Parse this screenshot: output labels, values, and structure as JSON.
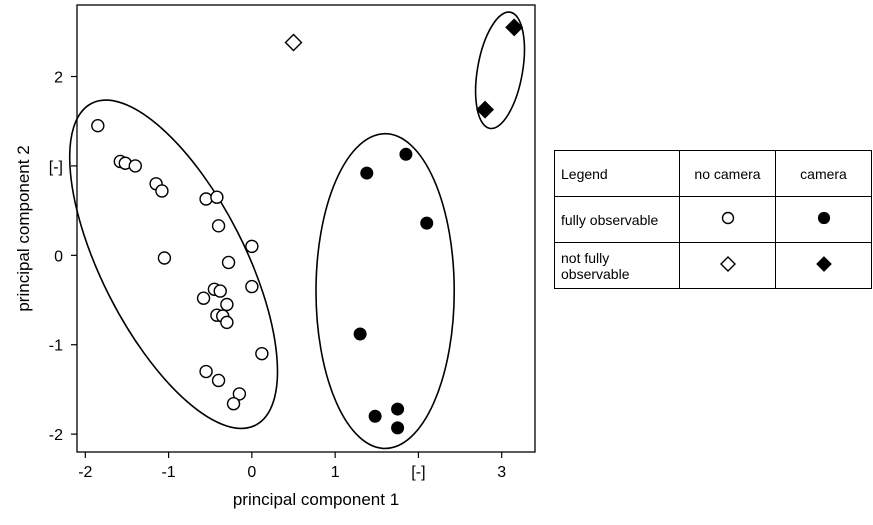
{
  "chart_data": {
    "type": "scatter",
    "xlabel": "principal component 1",
    "ylabel": "principal component 2",
    "x_unit_label": "[-]",
    "y_unit_label": "[-]",
    "xlim": [
      -2.1,
      3.4
    ],
    "ylim": [
      -2.2,
      2.8
    ],
    "xticks": [
      -2,
      -1,
      0,
      1,
      2,
      3
    ],
    "yticks": [
      -2,
      -1,
      0,
      1,
      2
    ],
    "x_tick_labels": [
      "-2",
      "-1",
      "0",
      "1",
      "[-]",
      "3"
    ],
    "y_tick_labels": [
      "-2",
      "-1",
      "0",
      "[-]",
      "2"
    ],
    "grid": false,
    "series": [
      {
        "name": "fully observable, no camera",
        "marker": "circle-open",
        "points": [
          [
            -1.85,
            1.45
          ],
          [
            -1.58,
            1.05
          ],
          [
            -1.52,
            1.03
          ],
          [
            -1.4,
            1.0
          ],
          [
            -1.15,
            0.8
          ],
          [
            -1.08,
            0.72
          ],
          [
            -0.55,
            0.63
          ],
          [
            -0.42,
            0.65
          ],
          [
            -0.4,
            0.33
          ],
          [
            0.0,
            0.1
          ],
          [
            -1.05,
            -0.03
          ],
          [
            -0.28,
            -0.08
          ],
          [
            -0.45,
            -0.38
          ],
          [
            -0.38,
            -0.4
          ],
          [
            -0.58,
            -0.48
          ],
          [
            -0.3,
            -0.55
          ],
          [
            0.0,
            -0.35
          ],
          [
            -0.42,
            -0.67
          ],
          [
            -0.35,
            -0.68
          ],
          [
            -0.3,
            -0.75
          ],
          [
            0.12,
            -1.1
          ],
          [
            -0.55,
            -1.3
          ],
          [
            -0.4,
            -1.4
          ],
          [
            -0.15,
            -1.55
          ],
          [
            -0.22,
            -1.66
          ]
        ]
      },
      {
        "name": "fully observable, camera",
        "marker": "circle-filled",
        "points": [
          [
            1.85,
            1.13
          ],
          [
            1.38,
            0.92
          ],
          [
            2.1,
            0.36
          ],
          [
            1.3,
            -0.88
          ],
          [
            1.48,
            -1.8
          ],
          [
            1.75,
            -1.72
          ],
          [
            1.75,
            -1.93
          ]
        ]
      },
      {
        "name": "not fully observable, no camera",
        "marker": "diamond-open",
        "points": [
          [
            0.5,
            2.38
          ]
        ]
      },
      {
        "name": "not fully observable, camera",
        "marker": "diamond-filled",
        "points": [
          [
            3.15,
            2.55
          ],
          [
            2.8,
            1.63
          ]
        ]
      }
    ],
    "cluster_ellipses": [
      {
        "name": "no-camera-cluster",
        "cx": -0.94,
        "cy": -0.1,
        "rx": 0.86,
        "ry": 2.02,
        "angle_deg": -27
      },
      {
        "name": "camera-cluster",
        "cx": 1.6,
        "cy": -0.4,
        "rx": 0.83,
        "ry": 1.76,
        "angle_deg": 0
      },
      {
        "name": "camera-not-observable-cluster",
        "cx": 2.98,
        "cy": 2.07,
        "rx": 0.27,
        "ry": 0.66,
        "angle_deg": 10
      }
    ],
    "legend": {
      "title": "Legend",
      "columns": [
        "no camera",
        "camera"
      ],
      "rows": [
        "fully observable",
        "not fully observable"
      ],
      "placement": "right"
    }
  }
}
